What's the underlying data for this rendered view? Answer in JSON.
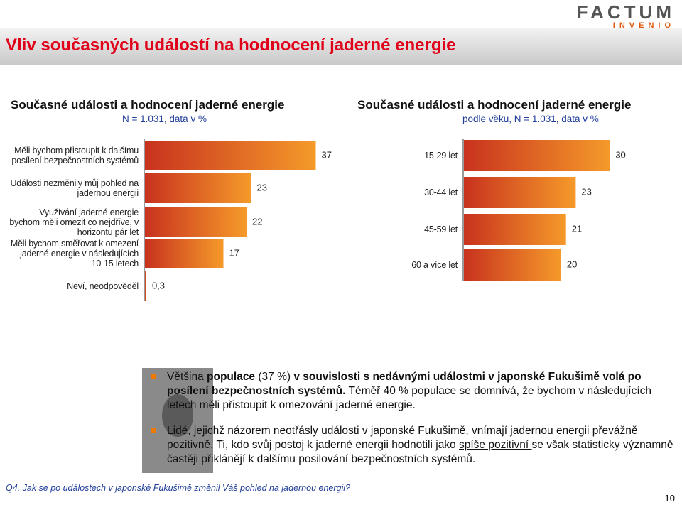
{
  "logo": {
    "name": "FACTUM",
    "tagline": "INVENIO"
  },
  "header": {
    "title": "Vliv současných událostí na hodnocení jaderné energie"
  },
  "chart_data": [
    {
      "type": "hbar",
      "title": "Současné události a hodnocení jaderné energie",
      "subtitle": "N = 1.031, data v %",
      "categories": [
        "Měli bychom přistoupit k dalšímu posílení bezpečnostních systémů",
        "Události nezměnily můj pohled na jadernou energii",
        "Využívání jaderné energie bychom měli omezit co nejdříve, v horizontu pár let",
        "Měli bychom směřovat k omezení jaderné energie v následujících 10-15 letech",
        "Neví, neodpověděl"
      ],
      "values": [
        37,
        23,
        22,
        17,
        0.3
      ],
      "value_labels": [
        "37",
        "23",
        "22",
        "17",
        "0,3"
      ],
      "xlim": [
        0,
        40
      ],
      "color": "#e8601c"
    },
    {
      "type": "hbar",
      "title": "Současné události a hodnocení jaderné energie",
      "subtitle": "podle věku, N = 1.031, data v %",
      "categories": [
        "15-29 let",
        "30-44 let",
        "45-59 let",
        "60 a více let"
      ],
      "values": [
        30,
        23,
        21,
        20
      ],
      "xlim": [
        0,
        32
      ],
      "color": "#e8601c"
    }
  ],
  "bullets": [
    [
      "Většina ",
      "populace",
      " (37 %) ",
      "v souvislosti s nedávnými událostmi v japonské Fukušimě volá po posílení bezpečnostních systémů.",
      " Téměř 40 % populace se domnívá, že bychom v následujících letech měli přistoupit k omezování jaderné energie."
    ],
    [
      "Lidé, jejichž názorem neotřásly události v japonské Fukušimě, vnímají jadernou energii převážně pozitivně. Ti, kdo svůj postoj  k jaderné energii hodnotili jako ",
      "spíše pozitivní ",
      "se však statisticky významně častěji přiklánějí k dalšímu posilování bezpečnostních systémů."
    ]
  ],
  "footnote": "Q4. Jak se po událostech v japonské Fukušimě změnil Váš pohled na jadernou energii?",
  "page_number": "10"
}
